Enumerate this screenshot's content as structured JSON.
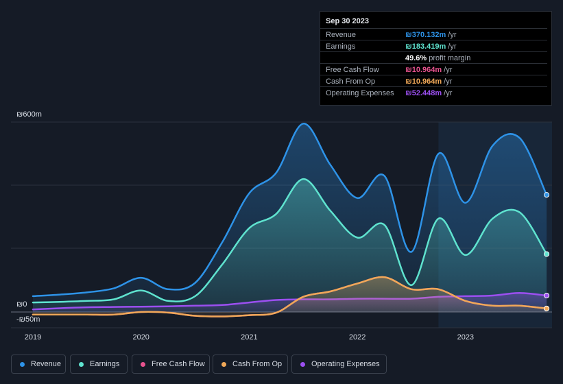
{
  "tooltip": {
    "date": "Sep 30 2023",
    "rows": [
      {
        "label": "Revenue",
        "value": "₪370.132m",
        "unit": "/yr",
        "color": "#2e93e8"
      },
      {
        "label": "Earnings",
        "value": "₪183.419m",
        "unit": "/yr",
        "color": "#5fe3cf"
      },
      {
        "label": "",
        "value": "49.6%",
        "unit": "profit margin",
        "color": "#ffffff"
      },
      {
        "label": "Free Cash Flow",
        "value": "₪10.964m",
        "unit": "/yr",
        "color": "#e8538f"
      },
      {
        "label": "Cash From Op",
        "value": "₪10.964m",
        "unit": "/yr",
        "color": "#f0a858"
      },
      {
        "label": "Operating Expenses",
        "value": "₪52.448m",
        "unit": "/yr",
        "color": "#9b4ff0"
      }
    ]
  },
  "legend": [
    {
      "label": "Revenue",
      "color": "#2e93e8"
    },
    {
      "label": "Earnings",
      "color": "#5fe3cf"
    },
    {
      "label": "Free Cash Flow",
      "color": "#e8538f"
    },
    {
      "label": "Cash From Op",
      "color": "#f0a858"
    },
    {
      "label": "Operating Expenses",
      "color": "#9b4ff0"
    }
  ],
  "chart_data": {
    "type": "area",
    "ytick_labels": {
      "top": "₪600m",
      "zero": "₪0",
      "bottom": "-₪50m"
    },
    "ylim": [
      -50,
      600
    ],
    "xlim": [
      2019.0,
      2023.8
    ],
    "x_ticks": [
      {
        "value": 2019.0,
        "label": "2019"
      },
      {
        "value": 2020.0,
        "label": "2020"
      },
      {
        "value": 2021.0,
        "label": "2021"
      },
      {
        "value": 2022.0,
        "label": "2022"
      },
      {
        "value": 2023.0,
        "label": "2023"
      }
    ],
    "forecast_start": 2022.75,
    "series": [
      {
        "name": "Revenue",
        "color": "#2e93e8",
        "fill": true,
        "x": [
          2019.0,
          2019.25,
          2019.5,
          2019.75,
          2020.0,
          2020.25,
          2020.5,
          2020.75,
          2021.0,
          2021.25,
          2021.5,
          2021.75,
          2022.0,
          2022.25,
          2022.5,
          2022.75,
          2023.0,
          2023.25,
          2023.5,
          2023.75
        ],
        "values": [
          50,
          55,
          62,
          75,
          108,
          72,
          92,
          220,
          375,
          440,
          595,
          465,
          360,
          430,
          190,
          500,
          345,
          525,
          550,
          370
        ]
      },
      {
        "name": "Earnings",
        "color": "#5fe3cf",
        "fill": true,
        "x": [
          2019.0,
          2019.25,
          2019.5,
          2019.75,
          2020.0,
          2020.25,
          2020.5,
          2020.75,
          2021.0,
          2021.25,
          2021.5,
          2021.75,
          2022.0,
          2022.25,
          2022.5,
          2022.75,
          2023.0,
          2023.25,
          2023.5,
          2023.75
        ],
        "values": [
          30,
          32,
          35,
          40,
          68,
          35,
          50,
          150,
          265,
          310,
          420,
          320,
          235,
          275,
          85,
          295,
          180,
          295,
          315,
          183
        ]
      },
      {
        "name": "Free Cash Flow",
        "color": "#e8538f",
        "fill": false,
        "x": [
          2019.0,
          2019.25,
          2019.5,
          2019.75,
          2020.0,
          2020.25,
          2020.5,
          2020.75,
          2021.0,
          2021.25,
          2021.5,
          2021.75,
          2022.0,
          2022.25,
          2022.5,
          2022.75,
          2023.0,
          2023.25,
          2023.5,
          2023.75
        ],
        "values": [
          -8,
          -8,
          -8,
          -8,
          0,
          -2,
          -12,
          -14,
          -10,
          -2,
          48,
          65,
          90,
          110,
          72,
          72,
          35,
          20,
          20,
          11
        ]
      },
      {
        "name": "Cash From Op",
        "color": "#f0a858",
        "fill": true,
        "x": [
          2019.0,
          2019.25,
          2019.5,
          2019.75,
          2020.0,
          2020.25,
          2020.5,
          2020.75,
          2021.0,
          2021.25,
          2021.5,
          2021.75,
          2022.0,
          2022.25,
          2022.5,
          2022.75,
          2023.0,
          2023.25,
          2023.5,
          2023.75
        ],
        "values": [
          -8,
          -8,
          -8,
          -8,
          0,
          -2,
          -12,
          -14,
          -10,
          -2,
          48,
          65,
          90,
          110,
          72,
          72,
          35,
          20,
          20,
          11
        ]
      },
      {
        "name": "Operating Expenses",
        "color": "#9b4ff0",
        "fill": true,
        "x": [
          2019.0,
          2019.25,
          2019.5,
          2019.75,
          2020.0,
          2020.25,
          2020.5,
          2020.75,
          2021.0,
          2021.25,
          2021.5,
          2021.75,
          2022.0,
          2022.25,
          2022.5,
          2022.75,
          2023.0,
          2023.25,
          2023.5,
          2023.75
        ],
        "values": [
          8,
          12,
          15,
          16,
          17,
          18,
          20,
          22,
          30,
          38,
          40,
          40,
          42,
          42,
          42,
          48,
          50,
          52,
          60,
          52
        ]
      }
    ]
  }
}
